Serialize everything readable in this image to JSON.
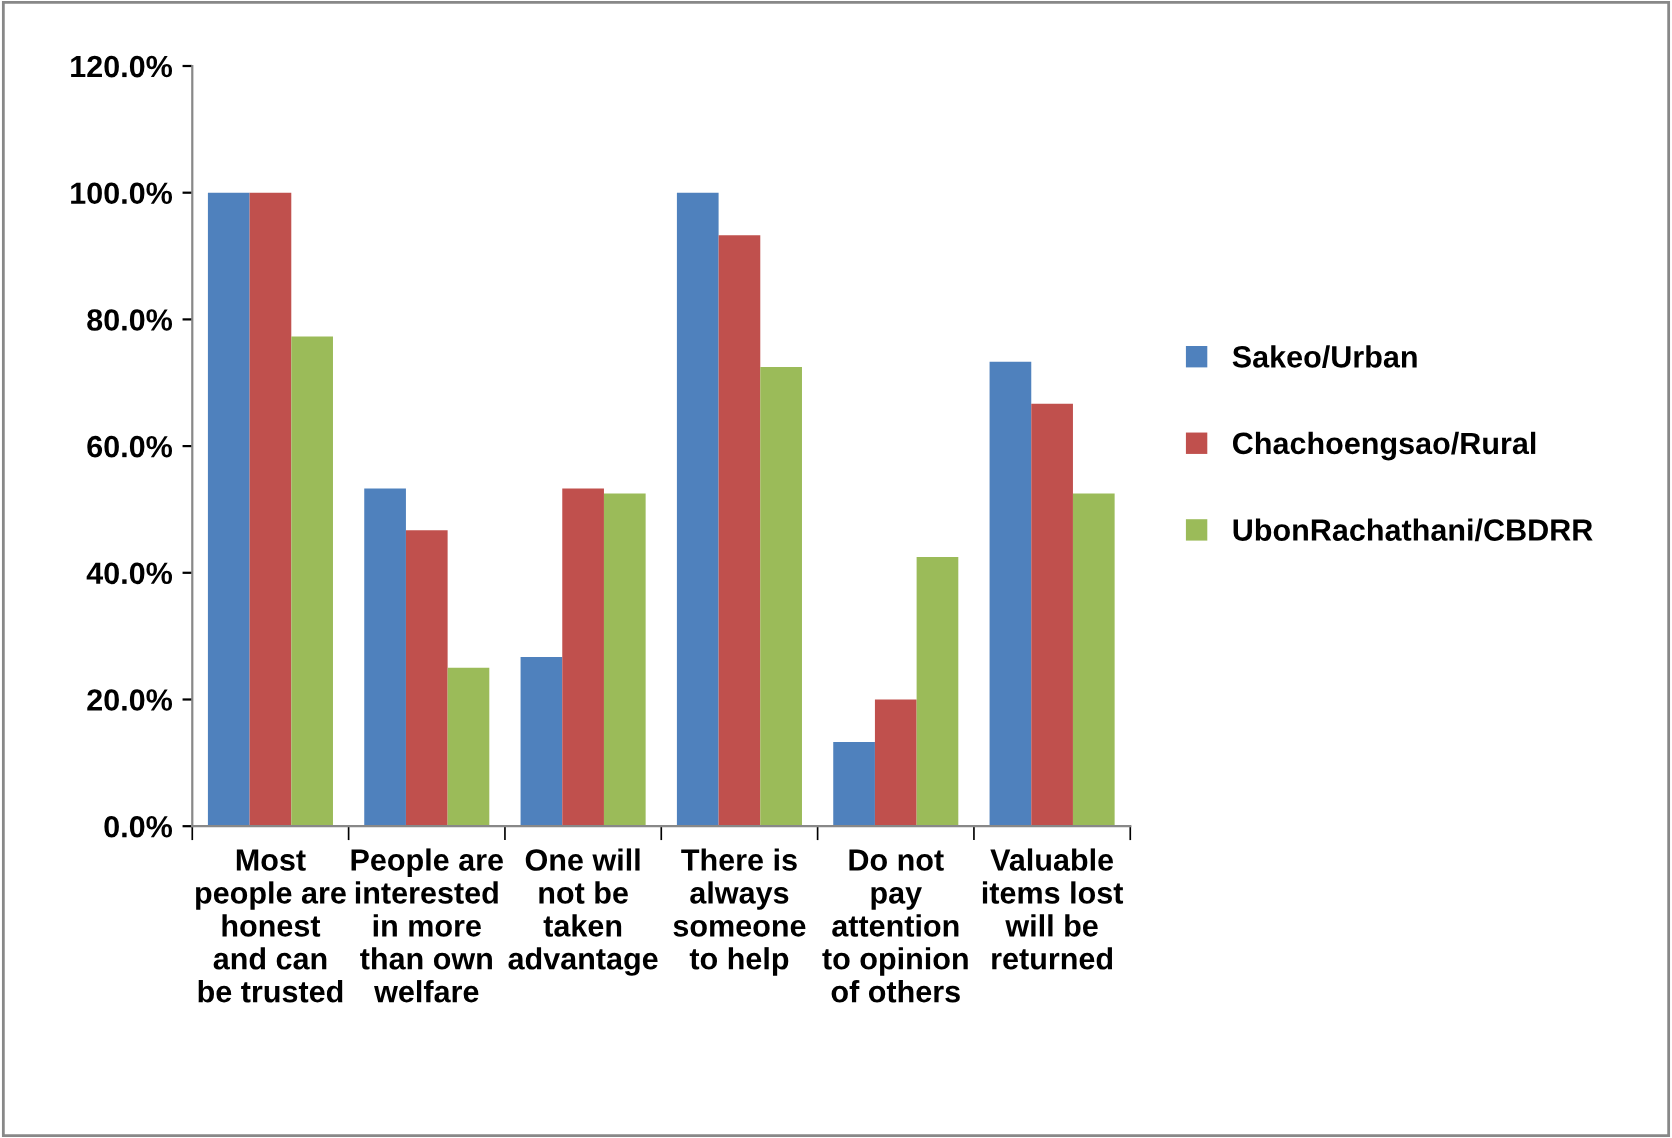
{
  "chart_data": {
    "type": "bar",
    "categories": [
      "Most\npeople are\nhonest\nand can\nbe trusted",
      "People are\ninterested\nin more\nthan own\nwelfare",
      "One will\nnot be\ntaken\nadvantage",
      "There is\nalways\nsomeone\nto help",
      "Do not\npay\nattention\nto opinion\nof others",
      "Valuable\nitems lost\nwill be\nreturned"
    ],
    "series": [
      {
        "name": "Sakeo/Urban",
        "color": "#4f81bd",
        "values": [
          100,
          53.3,
          26.7,
          100,
          13.3,
          73.3
        ]
      },
      {
        "name": "Chachoengsao/Rural",
        "color": "#c0504d",
        "values": [
          100,
          46.7,
          53.3,
          93.3,
          20,
          66.7
        ]
      },
      {
        "name": "UbonRachathani/CBDRR",
        "color": "#9bbb59",
        "values": [
          77.3,
          25,
          52.5,
          72.5,
          42.5,
          52.5
        ]
      }
    ],
    "ylim": [
      0,
      120
    ],
    "yticks": [
      {
        "value": 0,
        "label": "0.0%"
      },
      {
        "value": 20,
        "label": "20.0%"
      },
      {
        "value": 40,
        "label": "40.0%"
      },
      {
        "value": 60,
        "label": "60.0%"
      },
      {
        "value": 80,
        "label": "80.0%"
      },
      {
        "value": 100,
        "label": "100.0%"
      },
      {
        "value": 120,
        "label": "120.0%"
      }
    ],
    "grid": false,
    "legend": "right"
  }
}
